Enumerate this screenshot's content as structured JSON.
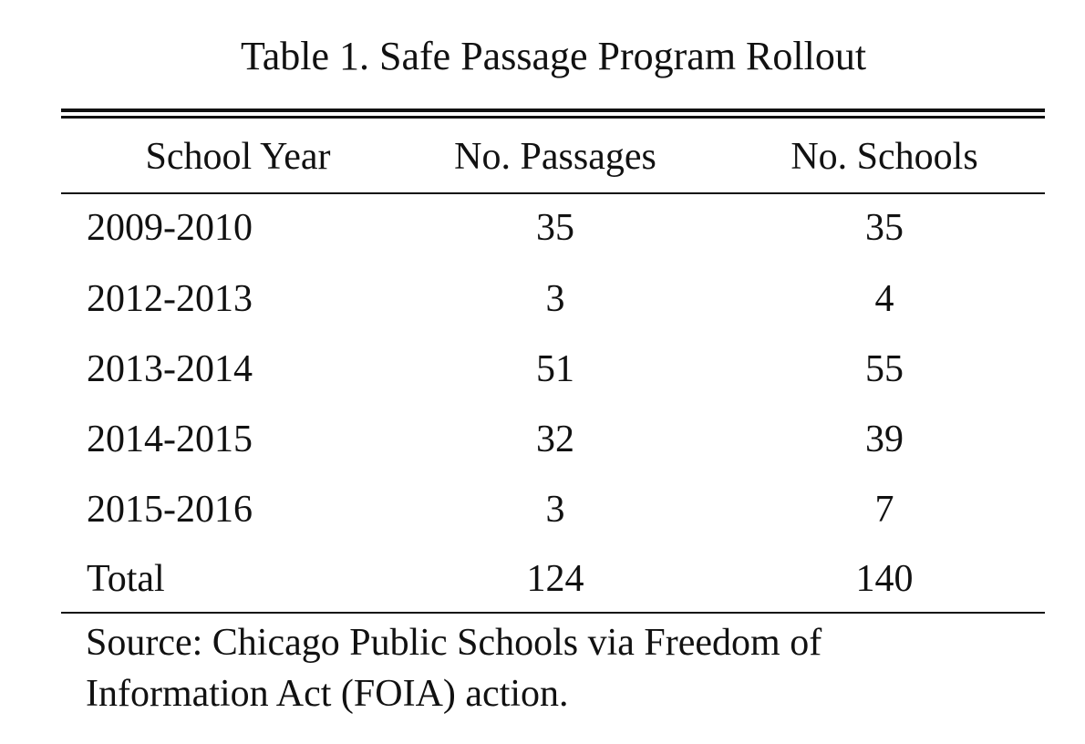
{
  "title": "Table 1. Safe Passage Program Rollout",
  "table": {
    "headers": [
      "School Year",
      "No. Passages",
      "No. Schools"
    ],
    "rows": [
      [
        "2009-2010",
        "35",
        "35"
      ],
      [
        "2012-2013",
        "3",
        "4"
      ],
      [
        "2013-2014",
        "51",
        "55"
      ],
      [
        "2014-2015",
        "32",
        "39"
      ],
      [
        "2015-2016",
        "3",
        "7"
      ],
      [
        "Total",
        "124",
        "140"
      ]
    ]
  },
  "source": {
    "line1": "Source: Chicago Public Schools via Freedom of",
    "line2": "Information Act (FOIA) action."
  }
}
